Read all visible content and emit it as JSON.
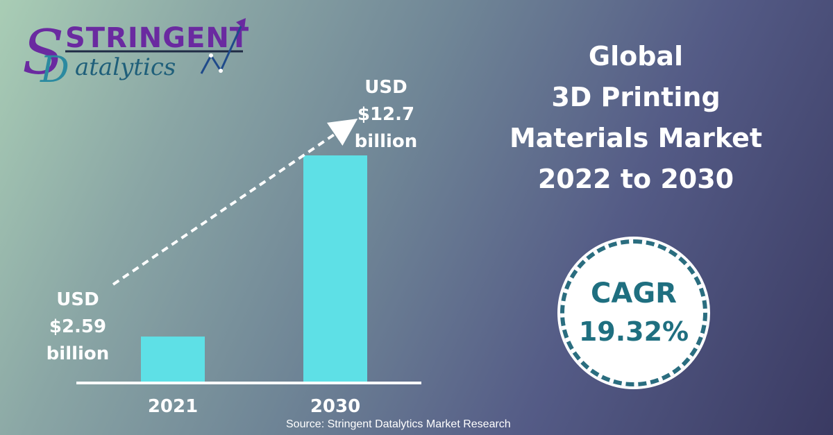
{
  "brand": {
    "name_line1": "STRINGENT",
    "name_line2": "atalytics",
    "initial_s": "S",
    "initial_d": "D"
  },
  "title_lines": [
    "Global",
    "3D Printing",
    "Materials Market",
    "2022 to 2030"
  ],
  "cagr": {
    "label": "CAGR",
    "value": "19.32%"
  },
  "source": "Source: Stringent Datalytics Market Research",
  "colors": {
    "bar": "#5ee0e6",
    "cagr_text": "#1f6f80",
    "cagr_border": "#2a6d7f",
    "logo_purple": "#6a2aa0",
    "logo_teal": "#2b8aa0"
  },
  "chart_data": {
    "type": "bar",
    "categories": [
      "2021",
      "2030"
    ],
    "values": [
      2.59,
      12.7
    ],
    "data_labels": [
      [
        "USD",
        "$2.59",
        "billion"
      ],
      [
        "USD",
        "$12.7",
        "billion"
      ]
    ],
    "ylim": [
      0,
      12.7
    ],
    "grid": false,
    "trend_arrow": true
  }
}
